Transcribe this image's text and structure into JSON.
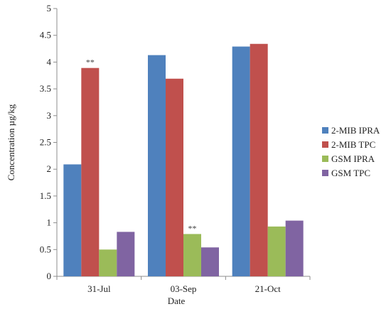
{
  "chart_data": {
    "type": "bar",
    "title": "",
    "xlabel": "Date",
    "ylabel": "Concentration µg/kg",
    "ylim": [
      0,
      5
    ],
    "yticks": [
      "0",
      "0.5",
      "1",
      "1.5",
      "2",
      "2.5",
      "3",
      "3.5",
      "4",
      "4.5",
      "5"
    ],
    "categories": [
      "31-Jul",
      "03-Sep",
      "21-Oct"
    ],
    "series": [
      {
        "name": "2-MIB IPRA",
        "color": "#4F81BD",
        "values": [
          2.09,
          4.13,
          4.29
        ]
      },
      {
        "name": "2-MIB TPC",
        "color": "#C0504D",
        "values": [
          3.89,
          3.69,
          4.34
        ]
      },
      {
        "name": "GSM IPRA",
        "color": "#9BBB59",
        "values": [
          0.5,
          0.79,
          0.93
        ]
      },
      {
        "name": "GSM TPC",
        "color": "#8064A2",
        "values": [
          0.83,
          0.54,
          1.04
        ]
      }
    ],
    "annotations": [
      {
        "text": "**",
        "category": "31-Jul",
        "series": "2-MIB TPC"
      },
      {
        "text": "**",
        "category": "03-Sep",
        "series": "GSM IPRA"
      }
    ],
    "grid": false,
    "legend_position": "right"
  }
}
